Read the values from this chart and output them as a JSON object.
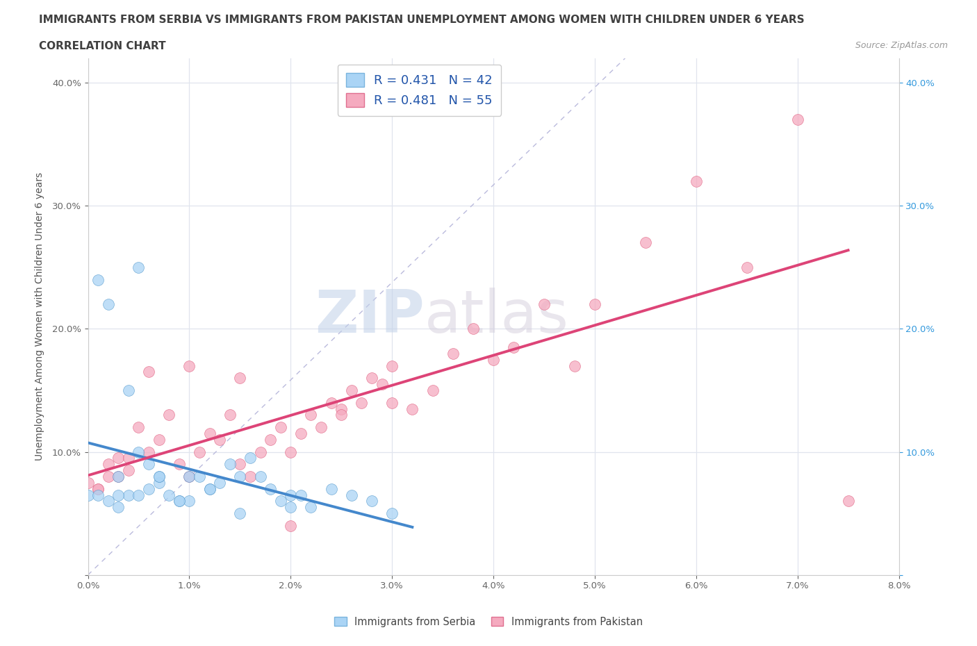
{
  "title": "IMMIGRANTS FROM SERBIA VS IMMIGRANTS FROM PAKISTAN UNEMPLOYMENT AMONG WOMEN WITH CHILDREN UNDER 6 YEARS",
  "subtitle": "CORRELATION CHART",
  "source": "Source: ZipAtlas.com",
  "ylabel": "Unemployment Among Women with Children Under 6 years",
  "legend_label_1": "Immigrants from Serbia",
  "legend_label_2": "Immigrants from Pakistan",
  "R1": "0.431",
  "N1": "42",
  "R2": "0.481",
  "N2": "55",
  "xlim": [
    0.0,
    0.08
  ],
  "ylim": [
    0.0,
    0.42
  ],
  "xticks": [
    0.0,
    0.01,
    0.02,
    0.03,
    0.04,
    0.05,
    0.06,
    0.07,
    0.08
  ],
  "yticks": [
    0.0,
    0.1,
    0.2,
    0.3,
    0.4
  ],
  "color_serbia": "#aad4f5",
  "color_pakistan": "#f5aabf",
  "color_serbia_line": "#4488cc",
  "color_pakistan_line": "#dd4477",
  "color_diag": "#bbbbdd",
  "watermark_zip": "ZIP",
  "watermark_atlas": "atlas",
  "serbia_x": [
    0.0,
    0.001,
    0.002,
    0.003,
    0.003,
    0.004,
    0.005,
    0.005,
    0.006,
    0.006,
    0.007,
    0.007,
    0.008,
    0.009,
    0.01,
    0.01,
    0.011,
    0.012,
    0.013,
    0.014,
    0.015,
    0.016,
    0.017,
    0.018,
    0.019,
    0.02,
    0.021,
    0.022,
    0.024,
    0.026,
    0.028,
    0.03,
    0.001,
    0.002,
    0.003,
    0.004,
    0.005,
    0.007,
    0.009,
    0.012,
    0.015,
    0.02
  ],
  "serbia_y": [
    0.065,
    0.065,
    0.06,
    0.055,
    0.08,
    0.065,
    0.065,
    0.25,
    0.07,
    0.09,
    0.075,
    0.08,
    0.065,
    0.06,
    0.08,
    0.06,
    0.08,
    0.07,
    0.075,
    0.09,
    0.08,
    0.095,
    0.08,
    0.07,
    0.06,
    0.065,
    0.065,
    0.055,
    0.07,
    0.065,
    0.06,
    0.05,
    0.24,
    0.22,
    0.065,
    0.15,
    0.1,
    0.08,
    0.06,
    0.07,
    0.05,
    0.055
  ],
  "pakistan_x": [
    0.0,
    0.001,
    0.002,
    0.003,
    0.004,
    0.005,
    0.006,
    0.007,
    0.008,
    0.009,
    0.01,
    0.011,
    0.012,
    0.013,
    0.014,
    0.015,
    0.016,
    0.017,
    0.018,
    0.019,
    0.02,
    0.021,
    0.022,
    0.023,
    0.024,
    0.025,
    0.026,
    0.027,
    0.028,
    0.029,
    0.03,
    0.032,
    0.034,
    0.036,
    0.038,
    0.04,
    0.042,
    0.045,
    0.048,
    0.05,
    0.055,
    0.06,
    0.065,
    0.07,
    0.075,
    0.003,
    0.006,
    0.01,
    0.015,
    0.02,
    0.025,
    0.03,
    0.001,
    0.002,
    0.004
  ],
  "pakistan_y": [
    0.075,
    0.07,
    0.09,
    0.08,
    0.085,
    0.12,
    0.1,
    0.11,
    0.13,
    0.09,
    0.08,
    0.1,
    0.115,
    0.11,
    0.13,
    0.09,
    0.08,
    0.1,
    0.11,
    0.12,
    0.1,
    0.115,
    0.13,
    0.12,
    0.14,
    0.135,
    0.15,
    0.14,
    0.16,
    0.155,
    0.17,
    0.135,
    0.15,
    0.18,
    0.2,
    0.175,
    0.185,
    0.22,
    0.17,
    0.22,
    0.27,
    0.32,
    0.25,
    0.37,
    0.06,
    0.095,
    0.165,
    0.17,
    0.16,
    0.04,
    0.13,
    0.14,
    0.07,
    0.08,
    0.095
  ]
}
